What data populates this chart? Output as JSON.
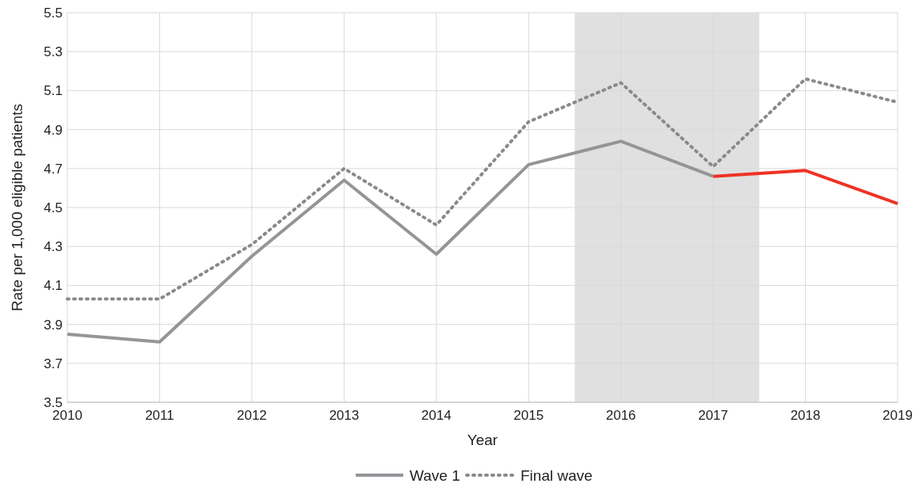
{
  "chart_data": {
    "type": "line",
    "xlabel": "Year",
    "ylabel": "Rate per 1,000 eligible patients",
    "x": [
      2010,
      2011,
      2012,
      2013,
      2014,
      2015,
      2016,
      2017,
      2018,
      2019
    ],
    "xlim": [
      2010,
      2019
    ],
    "xticks": [
      2010,
      2011,
      2012,
      2013,
      2014,
      2015,
      2016,
      2017,
      2018,
      2019
    ],
    "ylim": [
      3.5,
      5.5
    ],
    "yticks": [
      {
        "value": 3.5,
        "label": "3.5"
      },
      {
        "value": 3.7,
        "label": "3.7"
      },
      {
        "value": 3.9,
        "label": "3.9"
      },
      {
        "value": 4.1,
        "label": "4.1"
      },
      {
        "value": 4.3,
        "label": "4.3"
      },
      {
        "value": 4.5,
        "label": "4.5"
      },
      {
        "value": 4.7,
        "label": "4.7"
      },
      {
        "value": 4.9,
        "label": "4.9"
      },
      {
        "value": 5.1,
        "label": "5.1"
      },
      {
        "value": 5.3,
        "label": "5.3"
      },
      {
        "value": 5.5,
        "label": "5.5"
      }
    ],
    "grid": true,
    "legend": "bottom",
    "marker": "none",
    "bands": [
      {
        "axis": "x",
        "from": 2015.5,
        "to": 2017.5,
        "color": "#e0e0e0"
      }
    ],
    "series": [
      {
        "name": "Wave 1",
        "color": "#939598",
        "line_style": "solid",
        "x": [
          2010,
          2011,
          2012,
          2013,
          2014,
          2015,
          2016,
          2017
        ],
        "values": [
          3.85,
          3.81,
          4.25,
          4.64,
          4.26,
          4.72,
          4.84,
          4.66
        ]
      },
      {
        "name": "Final wave",
        "color": "#8a8a8c",
        "line_style": "dotted",
        "values": [
          4.03,
          4.03,
          4.31,
          4.7,
          4.41,
          4.94,
          5.14,
          4.71,
          5.16,
          5.04
        ]
      },
      {
        "color": "#ee3224",
        "line_style": "solid",
        "x": [
          2017,
          2018,
          2019
        ],
        "values": [
          4.66,
          4.69,
          4.52
        ]
      }
    ]
  }
}
